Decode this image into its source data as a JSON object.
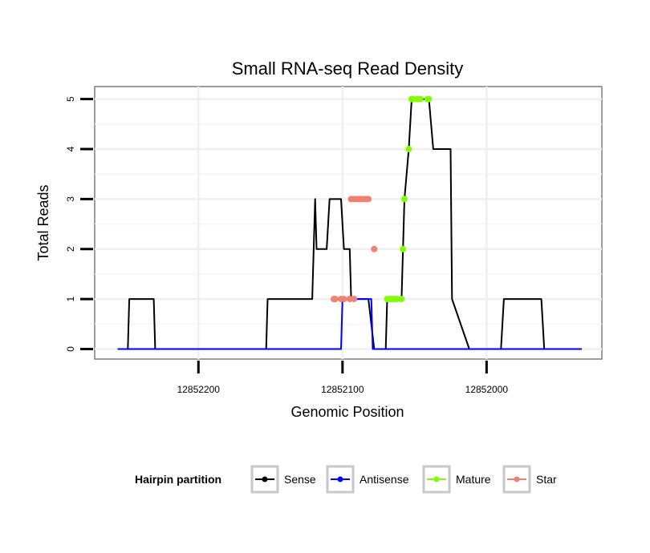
{
  "chart_data": {
    "type": "line",
    "title": "Small RNA-seq Read Density",
    "xlabel": "Genomic Position",
    "ylabel": "Total Reads",
    "x_reversed": true,
    "xlim": [
      12852272,
      12851920
    ],
    "ylim": [
      -0.2,
      5.25
    ],
    "x_ticks": [
      12852200,
      12852100,
      12852000
    ],
    "x_tick_labels": [
      "12852200",
      "12852100",
      "12852000"
    ],
    "y_ticks": [
      0,
      1,
      2,
      3,
      4,
      5
    ],
    "y_tick_labels": [
      "0",
      "1",
      "2",
      "3",
      "4",
      "5"
    ],
    "legend": {
      "title": "Hairpin partition",
      "position": "bottom",
      "entries": [
        "Sense",
        "Antisense",
        "Mature",
        "Star"
      ]
    },
    "colors": {
      "Sense": "#000000",
      "Antisense": "#0000ff",
      "Mature": "#7fff00",
      "Star": "#f08070"
    },
    "series": [
      {
        "name": "Sense",
        "x": [
          12852256,
          12852249,
          12852248,
          12852231,
          12852230,
          12852177,
          12852176,
          12852153,
          12852152,
          12852122,
          12852121,
          12852120,
          12852119,
          12852118,
          12852117,
          12852115,
          12852114,
          12852111,
          12852109,
          12852106,
          12852105,
          12852101,
          12852099,
          12852095,
          12852094,
          12852092,
          12852090,
          12852088,
          12852086,
          12852084,
          12852082,
          12852078,
          12852077,
          12852070,
          12852069,
          12852067,
          12852066,
          12852064,
          12852062,
          12852059,
          12852058,
          12852057,
          12852054,
          12852052,
          12852051,
          12852048,
          12852046,
          12852041,
          12852040,
          12852037,
          12852034,
          12852026,
          12852025,
          12852024,
          12852012,
          12852010,
          12852001,
          12851990,
          12851988,
          12851962,
          12851960,
          12851934
        ],
        "y": [
          0,
          0,
          1,
          1,
          0,
          0,
          0,
          0,
          1,
          1,
          1,
          2,
          3,
          2,
          2,
          2,
          2,
          2,
          3,
          3,
          3,
          3,
          2,
          2,
          1,
          1,
          1,
          1,
          1,
          1,
          1,
          0,
          0,
          0,
          1,
          1,
          1,
          1,
          1,
          1,
          2,
          3,
          4,
          5,
          5,
          5,
          5,
          5,
          5,
          4,
          4,
          4,
          4,
          1,
          0,
          0,
          0,
          0,
          1,
          1,
          0,
          0
        ]
      },
      {
        "name": "Antisense",
        "x": [
          12852256,
          12852230,
          12852101,
          12852100,
          12852080,
          12852079,
          12852030,
          12851934
        ],
        "y": [
          0,
          0,
          0,
          1,
          1,
          0,
          0,
          0
        ]
      },
      {
        "name": "Mature",
        "x": [
          12852069,
          12852067,
          12852066,
          12852064,
          12852062,
          12852059,
          12852058,
          12852057,
          12852054,
          12852052,
          12852051,
          12852048,
          12852046,
          12852041,
          12852040
        ],
        "y": [
          1,
          1,
          1,
          1,
          1,
          1,
          2,
          3,
          4,
          5,
          5,
          5,
          5,
          5,
          5
        ]
      },
      {
        "name": "Star",
        "x": [
          12852094,
          12852092,
          12852090,
          12852088,
          12852086,
          12852084,
          12852082,
          12852078,
          12852106,
          12852105,
          12852101,
          12852099,
          12852095,
          12852092
        ],
        "y": [
          3,
          3,
          3,
          3,
          3,
          3,
          3,
          2,
          1,
          1,
          1,
          1,
          1,
          1
        ]
      }
    ]
  }
}
